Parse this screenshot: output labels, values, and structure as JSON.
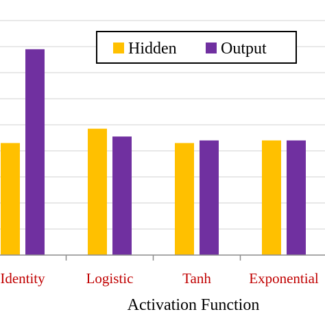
{
  "chart_data": {
    "type": "bar",
    "xlabel": "Activation  Function",
    "categories": [
      "Identity",
      "Logistic",
      "Tanh",
      "Exponential"
    ],
    "series": [
      {
        "name": "Hidden",
        "color": "#ffc000",
        "values": [
          4.3,
          4.85,
          4.3,
          4.4
        ]
      },
      {
        "name": "Output",
        "color": "#7030a0",
        "values": [
          7.9,
          4.55,
          4.4,
          4.4
        ]
      }
    ],
    "ylim": [
      0,
      10
    ],
    "grid": true,
    "legend": "top-right"
  }
}
